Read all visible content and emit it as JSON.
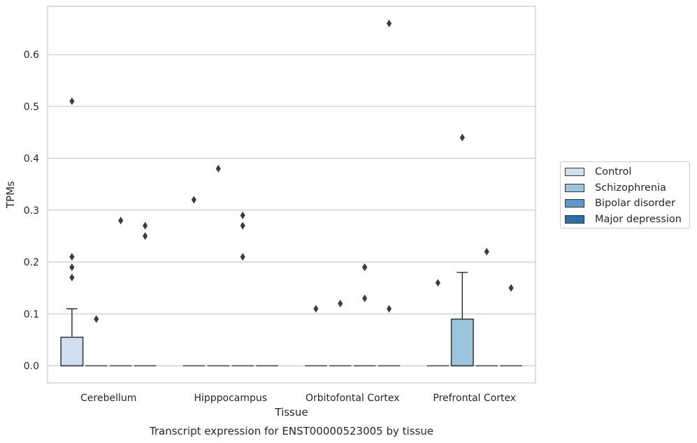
{
  "chart_data": {
    "type": "box",
    "title": "Transcript expression for ENST00000523005 by tissue",
    "xlabel": "Tissue",
    "ylabel": "TPMs",
    "ylim": [
      -0.033,
      0.693
    ],
    "yticks": [
      "0.0",
      "0.1",
      "0.2",
      "0.3",
      "0.4",
      "0.5",
      "0.6"
    ],
    "grid": true,
    "legend_position": "right",
    "categories": [
      "Cerebellum",
      "Hipppocampus",
      "Orbitofontal Cortex",
      "Prefrontal Cortex"
    ],
    "series": [
      {
        "name": "Control",
        "color": "#cfdff0",
        "boxes": [
          {
            "q1": 0.0,
            "median": 0.0,
            "q3": 0.055,
            "whisker_low": 0.0,
            "whisker_high": 0.11,
            "outliers": [
              0.51,
              0.21,
              0.19,
              0.17
            ]
          },
          {
            "q1": 0.0,
            "median": 0.0,
            "q3": 0.0,
            "whisker_low": 0.0,
            "whisker_high": 0.0,
            "outliers": [
              0.32
            ]
          },
          {
            "q1": 0.0,
            "median": 0.0,
            "q3": 0.0,
            "whisker_low": 0.0,
            "whisker_high": 0.0,
            "outliers": [
              0.11
            ]
          },
          {
            "q1": 0.0,
            "median": 0.0,
            "q3": 0.0,
            "whisker_low": 0.0,
            "whisker_high": 0.0,
            "outliers": [
              0.16
            ]
          }
        ]
      },
      {
        "name": "Schizophrenia",
        "color": "#9bc4dd",
        "boxes": [
          {
            "q1": 0.0,
            "median": 0.0,
            "q3": 0.0,
            "whisker_low": 0.0,
            "whisker_high": 0.0,
            "outliers": [
              0.09
            ]
          },
          {
            "q1": 0.0,
            "median": 0.0,
            "q3": 0.0,
            "whisker_low": 0.0,
            "whisker_high": 0.0,
            "outliers": [
              0.38
            ]
          },
          {
            "q1": 0.0,
            "median": 0.0,
            "q3": 0.0,
            "whisker_low": 0.0,
            "whisker_high": 0.0,
            "outliers": [
              0.12
            ]
          },
          {
            "q1": 0.0,
            "median": 0.0,
            "q3": 0.09,
            "whisker_low": 0.0,
            "whisker_high": 0.18,
            "outliers": [
              0.44
            ]
          }
        ]
      },
      {
        "name": "Bipolar disorder",
        "color": "#5b9ac6",
        "boxes": [
          {
            "q1": 0.0,
            "median": 0.0,
            "q3": 0.0,
            "whisker_low": 0.0,
            "whisker_high": 0.0,
            "outliers": [
              0.28
            ]
          },
          {
            "q1": 0.0,
            "median": 0.0,
            "q3": 0.0,
            "whisker_low": 0.0,
            "whisker_high": 0.0,
            "outliers": [
              0.29,
              0.27,
              0.21
            ]
          },
          {
            "q1": 0.0,
            "median": 0.0,
            "q3": 0.0,
            "whisker_low": 0.0,
            "whisker_high": 0.0,
            "outliers": [
              0.19,
              0.13,
              0.19
            ]
          },
          {
            "q1": 0.0,
            "median": 0.0,
            "q3": 0.0,
            "whisker_low": 0.0,
            "whisker_high": 0.0,
            "outliers": [
              0.22
            ]
          }
        ]
      },
      {
        "name": "Major depression",
        "color": "#2c6ea6",
        "boxes": [
          {
            "q1": 0.0,
            "median": 0.0,
            "q3": 0.0,
            "whisker_low": 0.0,
            "whisker_high": 0.0,
            "outliers": [
              0.27,
              0.25
            ]
          },
          {
            "q1": 0.0,
            "median": 0.0,
            "q3": 0.0,
            "whisker_low": 0.0,
            "whisker_high": 0.0,
            "outliers": []
          },
          {
            "q1": 0.0,
            "median": 0.0,
            "q3": 0.0,
            "whisker_low": 0.0,
            "whisker_high": 0.0,
            "outliers": [
              0.66,
              0.11
            ]
          },
          {
            "q1": 0.0,
            "median": 0.0,
            "q3": 0.0,
            "whisker_low": 0.0,
            "whisker_high": 0.0,
            "outliers": [
              0.15
            ]
          }
        ]
      }
    ]
  }
}
